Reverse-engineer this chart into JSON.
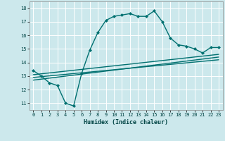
{
  "xlabel": "Humidex (Indice chaleur)",
  "background_color": "#cce8ec",
  "grid_color": "#ffffff",
  "line_color": "#007070",
  "ylim": [
    10.5,
    18.5
  ],
  "xlim": [
    -0.5,
    23.5
  ],
  "yticks": [
    11,
    12,
    13,
    14,
    15,
    16,
    17,
    18
  ],
  "xticks": [
    0,
    1,
    2,
    3,
    4,
    5,
    6,
    7,
    8,
    9,
    10,
    11,
    12,
    13,
    14,
    15,
    16,
    17,
    18,
    19,
    20,
    21,
    22,
    23
  ],
  "series": [
    {
      "x": [
        0,
        1,
        2,
        3,
        4,
        5,
        6,
        7,
        8,
        9,
        10,
        11,
        12,
        13,
        14,
        15,
        16,
        17,
        18,
        19,
        20,
        21,
        22,
        23
      ],
      "y": [
        13.4,
        13.0,
        12.5,
        12.3,
        11.0,
        10.8,
        13.2,
        14.9,
        16.2,
        17.1,
        17.4,
        17.5,
        17.6,
        17.4,
        17.4,
        17.8,
        17.0,
        15.8,
        15.3,
        15.2,
        15.0,
        14.7,
        15.1,
        15.1
      ],
      "marker": "D",
      "markersize": 2.0,
      "linewidth": 1.0,
      "has_marker": true
    },
    {
      "x": [
        0,
        23
      ],
      "y": [
        12.7,
        14.4
      ],
      "marker": null,
      "markersize": 0,
      "linewidth": 1.0,
      "has_marker": false
    },
    {
      "x": [
        0,
        23
      ],
      "y": [
        12.9,
        14.2
      ],
      "marker": null,
      "markersize": 0,
      "linewidth": 1.0,
      "has_marker": false
    },
    {
      "x": [
        0,
        23
      ],
      "y": [
        13.1,
        14.6
      ],
      "marker": null,
      "markersize": 0,
      "linewidth": 1.0,
      "has_marker": false
    }
  ]
}
